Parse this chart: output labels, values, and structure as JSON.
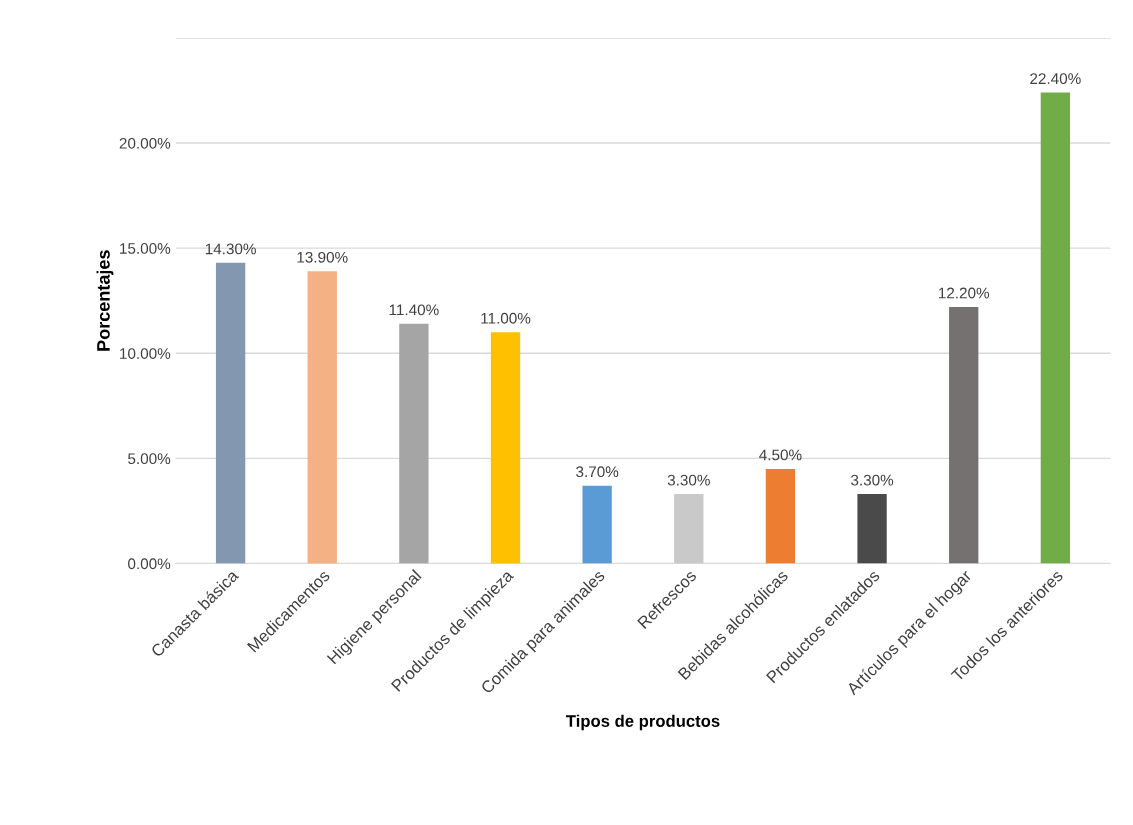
{
  "chart_data": {
    "type": "bar",
    "xlabel": "Tipos de productos",
    "ylabel": "Porcentajes",
    "categories": [
      "Canasta básica",
      "Medicamentos",
      "Higiene personal",
      "Productos de limpieza",
      "Comida para animales",
      "Refrescos",
      "Bebidas alcohólicas",
      "Productos enlatados",
      "Artículos para el hogar",
      "Todos los anteriores"
    ],
    "values": [
      14.3,
      13.9,
      11.4,
      11.0,
      3.7,
      3.3,
      4.5,
      3.3,
      12.2,
      22.4
    ],
    "colors": [
      "#8497b0",
      "#f4b183",
      "#a5a5a5",
      "#ffc000",
      "#5b9bd5",
      "#c9c9c9",
      "#ed7d31",
      "#4a4a4a",
      "#767171",
      "#70ad47"
    ],
    "value_labels": [
      "14.30%",
      "13.90%",
      "11.40%",
      "11.00%",
      "3.70%",
      "3.30%",
      "4.50%",
      "3.30%",
      "12.20%",
      "22.40%"
    ],
    "ylim": [
      0,
      25
    ],
    "yticks": [
      {
        "value": 0,
        "label": "0.00%"
      },
      {
        "value": 5,
        "label": "5.00%"
      },
      {
        "value": 10,
        "label": "10.00%"
      },
      {
        "value": 15,
        "label": "15.00%"
      },
      {
        "value": 20,
        "label": "20.00%"
      },
      {
        "value": 25,
        "label": null
      }
    ],
    "grid": "y",
    "legend": false
  }
}
